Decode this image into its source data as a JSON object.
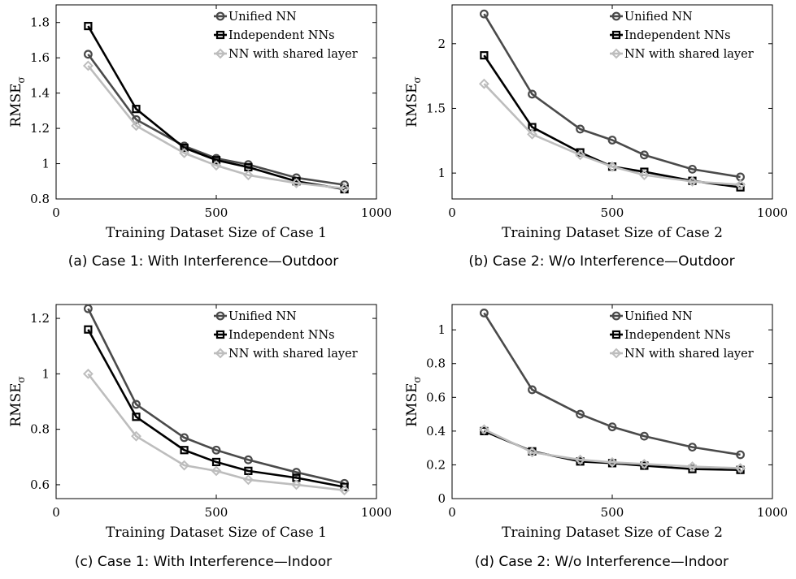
{
  "series_styles": [
    {
      "name": "Unified NN",
      "color": "#4a4a4a",
      "marker": "circle"
    },
    {
      "name": "Independent NNs",
      "color": "#000000",
      "marker": "square"
    },
    {
      "name": "NN with shared layer",
      "color": "#bdbdbd",
      "marker": "diamond"
    }
  ],
  "chart_data": [
    {
      "type": "line",
      "caption": "(a) Case 1: With Interference—Outdoor",
      "xlabel": "Training Dataset Size of Case 1",
      "ylabel": "RMSEσ",
      "xlim": [
        0,
        1000
      ],
      "ylim": [
        0.8,
        1.9
      ],
      "xticks": [
        0,
        500,
        1000
      ],
      "yticks": [
        0.8,
        1,
        1.2,
        1.4,
        1.6,
        1.8
      ],
      "ytick_labels": [
        "0.8",
        "1",
        "1.2",
        "1.4",
        "1.6",
        "1.8"
      ],
      "x": [
        100,
        250,
        400,
        500,
        600,
        750,
        900
      ],
      "series": [
        {
          "name": "Unified NN",
          "values": [
            1.62,
            1.25,
            1.1,
            1.03,
            0.995,
            0.92,
            0.88
          ]
        },
        {
          "name": "Independent NNs",
          "values": [
            1.78,
            1.31,
            1.09,
            1.02,
            0.98,
            0.9,
            0.855
          ]
        },
        {
          "name": "NN with shared layer",
          "values": [
            1.555,
            1.215,
            1.06,
            0.99,
            0.935,
            0.89,
            0.86
          ]
        }
      ],
      "legend": "top-right"
    },
    {
      "type": "line",
      "caption": "(b) Case 2: W/o Interference—Outdoor",
      "xlabel": "Training Dataset Size of Case 2",
      "ylabel": "RMSEσ",
      "xlim": [
        0,
        1000
      ],
      "ylim": [
        0.8,
        2.3
      ],
      "xticks": [
        0,
        500,
        1000
      ],
      "yticks": [
        1,
        1.5,
        2
      ],
      "ytick_labels": [
        "1",
        "1.5",
        "2"
      ],
      "x": [
        100,
        250,
        400,
        500,
        600,
        750,
        900
      ],
      "series": [
        {
          "name": "Unified NN",
          "values": [
            2.23,
            1.61,
            1.34,
            1.255,
            1.14,
            1.03,
            0.97
          ]
        },
        {
          "name": "Independent NNs",
          "values": [
            1.91,
            1.355,
            1.16,
            1.05,
            1.01,
            0.94,
            0.89
          ]
        },
        {
          "name": "NN with shared layer",
          "values": [
            1.69,
            1.3,
            1.14,
            1.05,
            0.985,
            0.935,
            0.91
          ]
        }
      ],
      "legend": "top-right"
    },
    {
      "type": "line",
      "caption": "(c) Case 1: With Interference—Indoor",
      "xlabel": "Training Dataset Size of Case 1",
      "ylabel": "RMSEσ",
      "xlim": [
        0,
        1000
      ],
      "ylim": [
        0.55,
        1.25
      ],
      "xticks": [
        0,
        500,
        1000
      ],
      "yticks": [
        0.6,
        0.8,
        1,
        1.2
      ],
      "ytick_labels": [
        "0.6",
        "0.8",
        "1",
        "1.2"
      ],
      "x": [
        100,
        250,
        400,
        500,
        600,
        750,
        900
      ],
      "series": [
        {
          "name": "Unified NN",
          "values": [
            1.235,
            0.89,
            0.77,
            0.725,
            0.69,
            0.645,
            0.605
          ]
        },
        {
          "name": "Independent NNs",
          "values": [
            1.16,
            0.845,
            0.725,
            0.682,
            0.65,
            0.625,
            0.592
          ]
        },
        {
          "name": "NN with shared layer",
          "values": [
            1.0,
            0.775,
            0.67,
            0.65,
            0.618,
            0.6,
            0.58
          ]
        }
      ],
      "legend": "top-right"
    },
    {
      "type": "line",
      "caption": "(d) Case 2: W/o Interference—Indoor",
      "xlabel": "Training Dataset Size of Case 2",
      "ylabel": "RMSEσ",
      "xlim": [
        0,
        1000
      ],
      "ylim": [
        0,
        1.15
      ],
      "xticks": [
        0,
        500,
        1000
      ],
      "yticks": [
        0,
        0.2,
        0.4,
        0.6,
        0.8,
        1
      ],
      "ytick_labels": [
        "0",
        "0.2",
        "0.4",
        "0.6",
        "0.8",
        "1"
      ],
      "x": [
        100,
        250,
        400,
        500,
        600,
        750,
        900
      ],
      "series": [
        {
          "name": "Unified NN",
          "values": [
            1.1,
            0.645,
            0.5,
            0.425,
            0.37,
            0.305,
            0.26
          ]
        },
        {
          "name": "Independent NNs",
          "values": [
            0.4,
            0.28,
            0.22,
            0.21,
            0.195,
            0.175,
            0.17
          ]
        },
        {
          "name": "NN with shared layer",
          "values": [
            0.41,
            0.275,
            0.23,
            0.215,
            0.205,
            0.19,
            0.18
          ]
        }
      ],
      "legend": "top-right"
    }
  ]
}
